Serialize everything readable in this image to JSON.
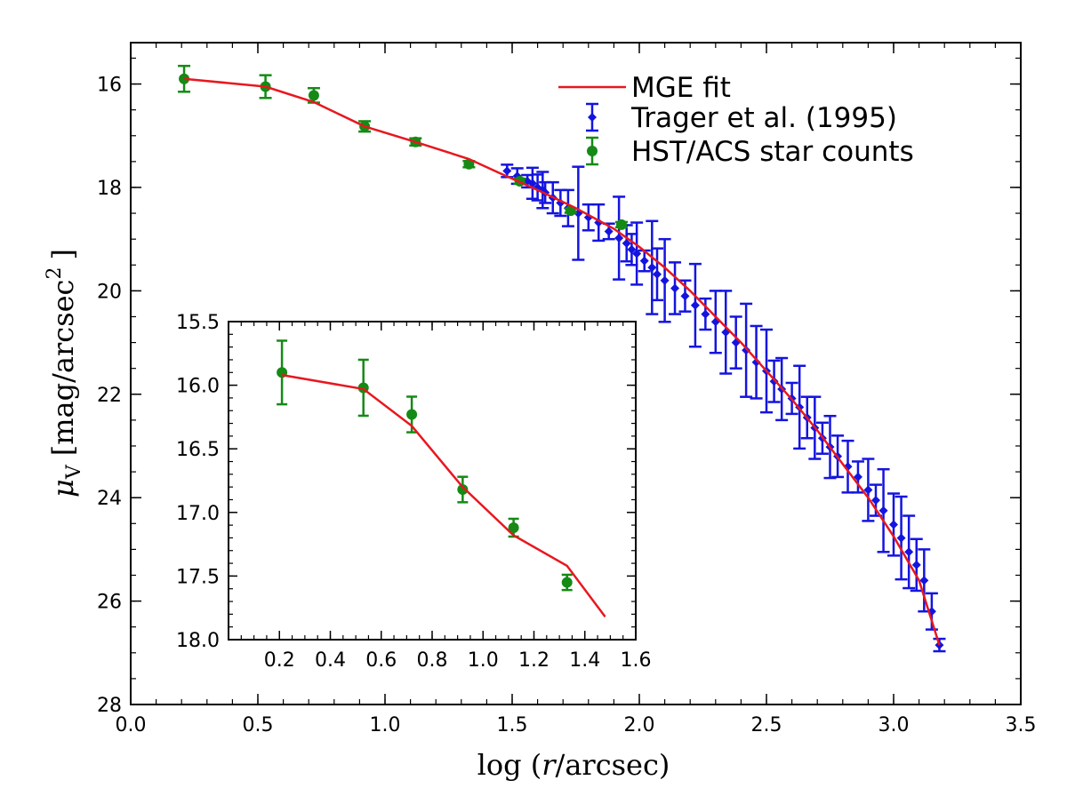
{
  "chart_data": [
    {
      "type": "scatter",
      "xlabel": "log (r/arcsec)",
      "ylabel": "μ_V [mag/arcsec^2]",
      "ylabel_main": "μ",
      "ylabel_sub": "V",
      "ylabel_unit": "[mag/arcsec",
      "ylabel_sup": "2",
      "ylabel_close": "]",
      "xlabel_prefix": "log (",
      "xlabel_var": "r",
      "xlabel_suffix": "/arcsec)",
      "xlim": [
        0.0,
        3.5
      ],
      "ylim": [
        28,
        15.2
      ],
      "y_inverted": true,
      "xticks": [
        "0.0",
        "0.5",
        "1.0",
        "1.5",
        "2.0",
        "2.5",
        "3.0",
        "3.5"
      ],
      "yticks": [
        "16",
        "18",
        "20",
        "22",
        "24",
        "26",
        "28"
      ],
      "legend": {
        "position": "top-right",
        "entries": [
          "MGE fit",
          "Trager et al. (1995)",
          "HST/ACS star counts"
        ]
      },
      "series": [
        {
          "name": "MGE fit",
          "type": "line",
          "color": "#e8171f",
          "x": [
            0.21,
            0.53,
            0.72,
            0.92,
            1.12,
            1.33,
            1.45,
            1.6,
            1.75,
            1.9,
            2.0,
            2.1,
            2.2,
            2.3,
            2.4,
            2.5,
            2.6,
            2.7,
            2.8,
            2.9,
            3.0,
            3.1,
            3.18
          ],
          "y": [
            15.9,
            16.05,
            16.35,
            16.82,
            17.12,
            17.45,
            17.72,
            18.05,
            18.4,
            18.8,
            19.15,
            19.55,
            20.0,
            20.5,
            21.0,
            21.55,
            22.1,
            22.7,
            23.35,
            24.0,
            24.75,
            25.6,
            26.85
          ]
        },
        {
          "name": "Trager et al. (1995)",
          "type": "errorbar",
          "color": "#1414e0",
          "marker": "diamond",
          "x": [
            1.48,
            1.52,
            1.56,
            1.58,
            1.6,
            1.62,
            1.63,
            1.66,
            1.69,
            1.72,
            1.76,
            1.8,
            1.84,
            1.88,
            1.92,
            1.95,
            1.97,
            1.99,
            2.02,
            2.05,
            2.07,
            2.1,
            2.14,
            2.18,
            2.22,
            2.26,
            2.3,
            2.34,
            2.38,
            2.42,
            2.46,
            2.5,
            2.53,
            2.56,
            2.6,
            2.63,
            2.66,
            2.69,
            2.72,
            2.75,
            2.78,
            2.82,
            2.86,
            2.9,
            2.93,
            2.96,
            3.0,
            3.03,
            3.06,
            3.09,
            3.12,
            3.15,
            3.18
          ],
          "y": [
            17.68,
            17.78,
            17.88,
            17.92,
            18.0,
            18.05,
            18.1,
            18.2,
            18.3,
            18.4,
            18.5,
            18.58,
            18.68,
            18.85,
            18.98,
            19.08,
            19.2,
            19.28,
            19.42,
            19.55,
            19.68,
            19.8,
            19.95,
            20.1,
            20.28,
            20.45,
            20.6,
            20.8,
            21.0,
            21.15,
            21.38,
            21.55,
            21.75,
            21.9,
            22.08,
            22.25,
            22.45,
            22.65,
            22.85,
            23.02,
            23.2,
            23.4,
            23.6,
            23.85,
            24.05,
            24.25,
            24.52,
            24.78,
            25.05,
            25.3,
            25.6,
            26.2,
            26.85
          ],
          "yerr": [
            0.12,
            0.15,
            0.12,
            0.3,
            0.25,
            0.35,
            0.2,
            0.3,
            0.25,
            0.35,
            0.9,
            0.25,
            0.35,
            0.15,
            0.8,
            0.35,
            0.3,
            0.6,
            0.2,
            0.9,
            0.5,
            0.8,
            0.5,
            0.3,
            0.8,
            0.3,
            0.6,
            0.8,
            0.5,
            0.9,
            0.7,
            0.8,
            0.4,
            0.6,
            0.3,
            0.8,
            0.4,
            0.6,
            0.3,
            0.6,
            0.4,
            0.5,
            0.3,
            0.6,
            0.3,
            0.8,
            0.6,
            0.8,
            0.7,
            0.5,
            0.6,
            0.35,
            0.12
          ]
        },
        {
          "name": "HST/ACS star counts",
          "type": "errorbar",
          "color": "#158a15",
          "marker": "circle",
          "x": [
            0.21,
            0.53,
            0.72,
            0.92,
            1.12,
            1.33,
            1.53,
            1.73,
            1.93
          ],
          "y": [
            15.9,
            16.05,
            16.22,
            16.82,
            17.12,
            17.55,
            17.88,
            18.45,
            18.72
          ],
          "yerr": [
            0.25,
            0.22,
            0.14,
            0.1,
            0.07,
            0.06,
            0.05,
            0.04,
            0.05
          ]
        }
      ]
    },
    {
      "type": "scatter",
      "role": "inset",
      "xlim": [
        0.0,
        1.6
      ],
      "ylim": [
        18.0,
        15.5
      ],
      "y_inverted": true,
      "xticks": [
        "0.2",
        "0.4",
        "0.6",
        "0.8",
        "1.0",
        "1.2",
        "1.4",
        "1.6"
      ],
      "yticks": [
        "15.5",
        "16.0",
        "16.5",
        "17.0",
        "17.5",
        "18.0"
      ],
      "series": [
        {
          "name": "MGE fit",
          "type": "line",
          "color": "#e8171f",
          "x": [
            0.21,
            0.53,
            0.72,
            0.92,
            1.12,
            1.33,
            1.48
          ],
          "y": [
            15.92,
            16.03,
            16.32,
            16.8,
            17.18,
            17.42,
            17.82
          ]
        },
        {
          "name": "HST/ACS star counts",
          "type": "errorbar",
          "color": "#158a15",
          "marker": "circle",
          "x": [
            0.21,
            0.53,
            0.72,
            0.92,
            1.12,
            1.33
          ],
          "y": [
            15.9,
            16.02,
            16.23,
            16.82,
            17.12,
            17.55
          ],
          "yerr": [
            0.25,
            0.22,
            0.14,
            0.1,
            0.07,
            0.06
          ]
        }
      ]
    }
  ]
}
